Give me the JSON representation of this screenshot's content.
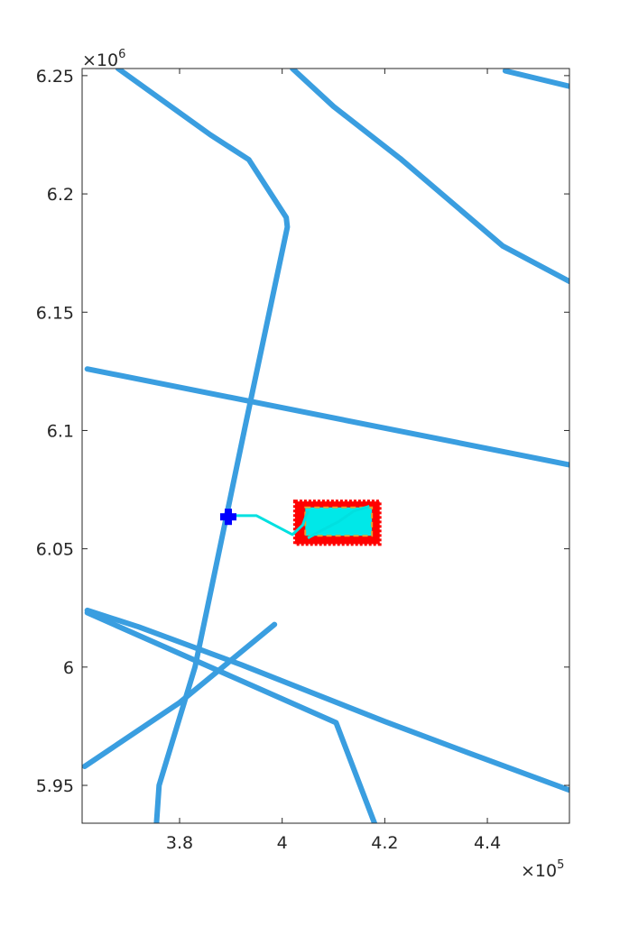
{
  "chart_data": {
    "type": "map-plot",
    "title": "",
    "xlabel": "",
    "ylabel": "",
    "xlim": [
      361000,
      456000
    ],
    "ylim": [
      5934000,
      6253000
    ],
    "grid": false,
    "legend": "none",
    "x_ticks": [
      {
        "value": 380000,
        "label": "3.8"
      },
      {
        "value": 400000,
        "label": "4"
      },
      {
        "value": 420000,
        "label": "4.2"
      },
      {
        "value": 440000,
        "label": "4.4"
      }
    ],
    "y_ticks": [
      {
        "value": 5950000,
        "label": "5.95"
      },
      {
        "value": 6000000,
        "label": "6"
      },
      {
        "value": 6050000,
        "label": "6.05"
      },
      {
        "value": 6100000,
        "label": "6.1"
      },
      {
        "value": 6150000,
        "label": "6.15"
      },
      {
        "value": 6200000,
        "label": "6.2"
      },
      {
        "value": 6250000,
        "label": "6.25"
      }
    ],
    "x_exponent": "×10",
    "x_exponent_power": "5",
    "y_exponent": "×10",
    "y_exponent_power": "6",
    "colors": {
      "road": "#3a9ee0",
      "path": "#00e0e0",
      "area_fill": "#00e8e8",
      "area_border": "#ff0000",
      "area_dash": "#e8a030",
      "marker": "#0000ff",
      "axis": "#262626"
    },
    "series": [
      {
        "type": "road",
        "points": [
          [
            368000,
            6253000
          ],
          [
            386000,
            6225000
          ],
          [
            393500,
            6214500
          ],
          [
            400800,
            6190000
          ],
          [
            401000,
            6186000
          ],
          [
            392800,
            6102000
          ],
          [
            383000,
            6000000
          ],
          [
            376000,
            5950000
          ],
          [
            375500,
            5934000
          ]
        ]
      },
      {
        "type": "road",
        "points": [
          [
            362000,
            6126000
          ],
          [
            456000,
            6085500
          ]
        ]
      },
      {
        "type": "road",
        "points": [
          [
            362000,
            6024000
          ],
          [
            372000,
            6017000
          ],
          [
            392000,
            6001000
          ],
          [
            420000,
            5977000
          ],
          [
            436000,
            5964000
          ],
          [
            456000,
            5948000
          ]
        ]
      },
      {
        "type": "road",
        "points": [
          [
            361500,
            5958000
          ],
          [
            380000,
            5985000
          ],
          [
            398500,
            6018000
          ]
        ]
      },
      {
        "type": "road",
        "points": [
          [
            362000,
            6023000
          ],
          [
            410500,
            5976500
          ],
          [
            418000,
            5934000
          ]
        ]
      },
      {
        "type": "road",
        "points": [
          [
            402000,
            6253000
          ],
          [
            410000,
            6237000
          ],
          [
            423000,
            6215000
          ],
          [
            443000,
            6178000
          ],
          [
            456000,
            6163000
          ]
        ]
      },
      {
        "type": "road",
        "points": [
          [
            443500,
            6252000
          ],
          [
            456000,
            6245500
          ]
        ]
      },
      {
        "type": "path",
        "points": [
          [
            391000,
            6064000
          ],
          [
            395000,
            6064000
          ],
          [
            402000,
            6056000
          ],
          [
            404000,
            6060000
          ],
          [
            404500,
            6063000
          ],
          [
            405000,
            6066000
          ]
        ]
      },
      {
        "type": "path",
        "points": [
          [
            405000,
            6054500
          ],
          [
            407000,
            6057000
          ],
          [
            411000,
            6061500
          ],
          [
            414000,
            6066000
          ],
          [
            417000,
            6068000
          ]
        ]
      },
      {
        "type": "area",
        "corners": [
          [
            402500,
            6052000
          ],
          [
            419000,
            6070000
          ]
        ],
        "inner": [
          [
            404500,
            6055500
          ],
          [
            417500,
            6067500
          ]
        ]
      },
      {
        "type": "marker",
        "point": [
          389500,
          6063500
        ]
      }
    ]
  }
}
